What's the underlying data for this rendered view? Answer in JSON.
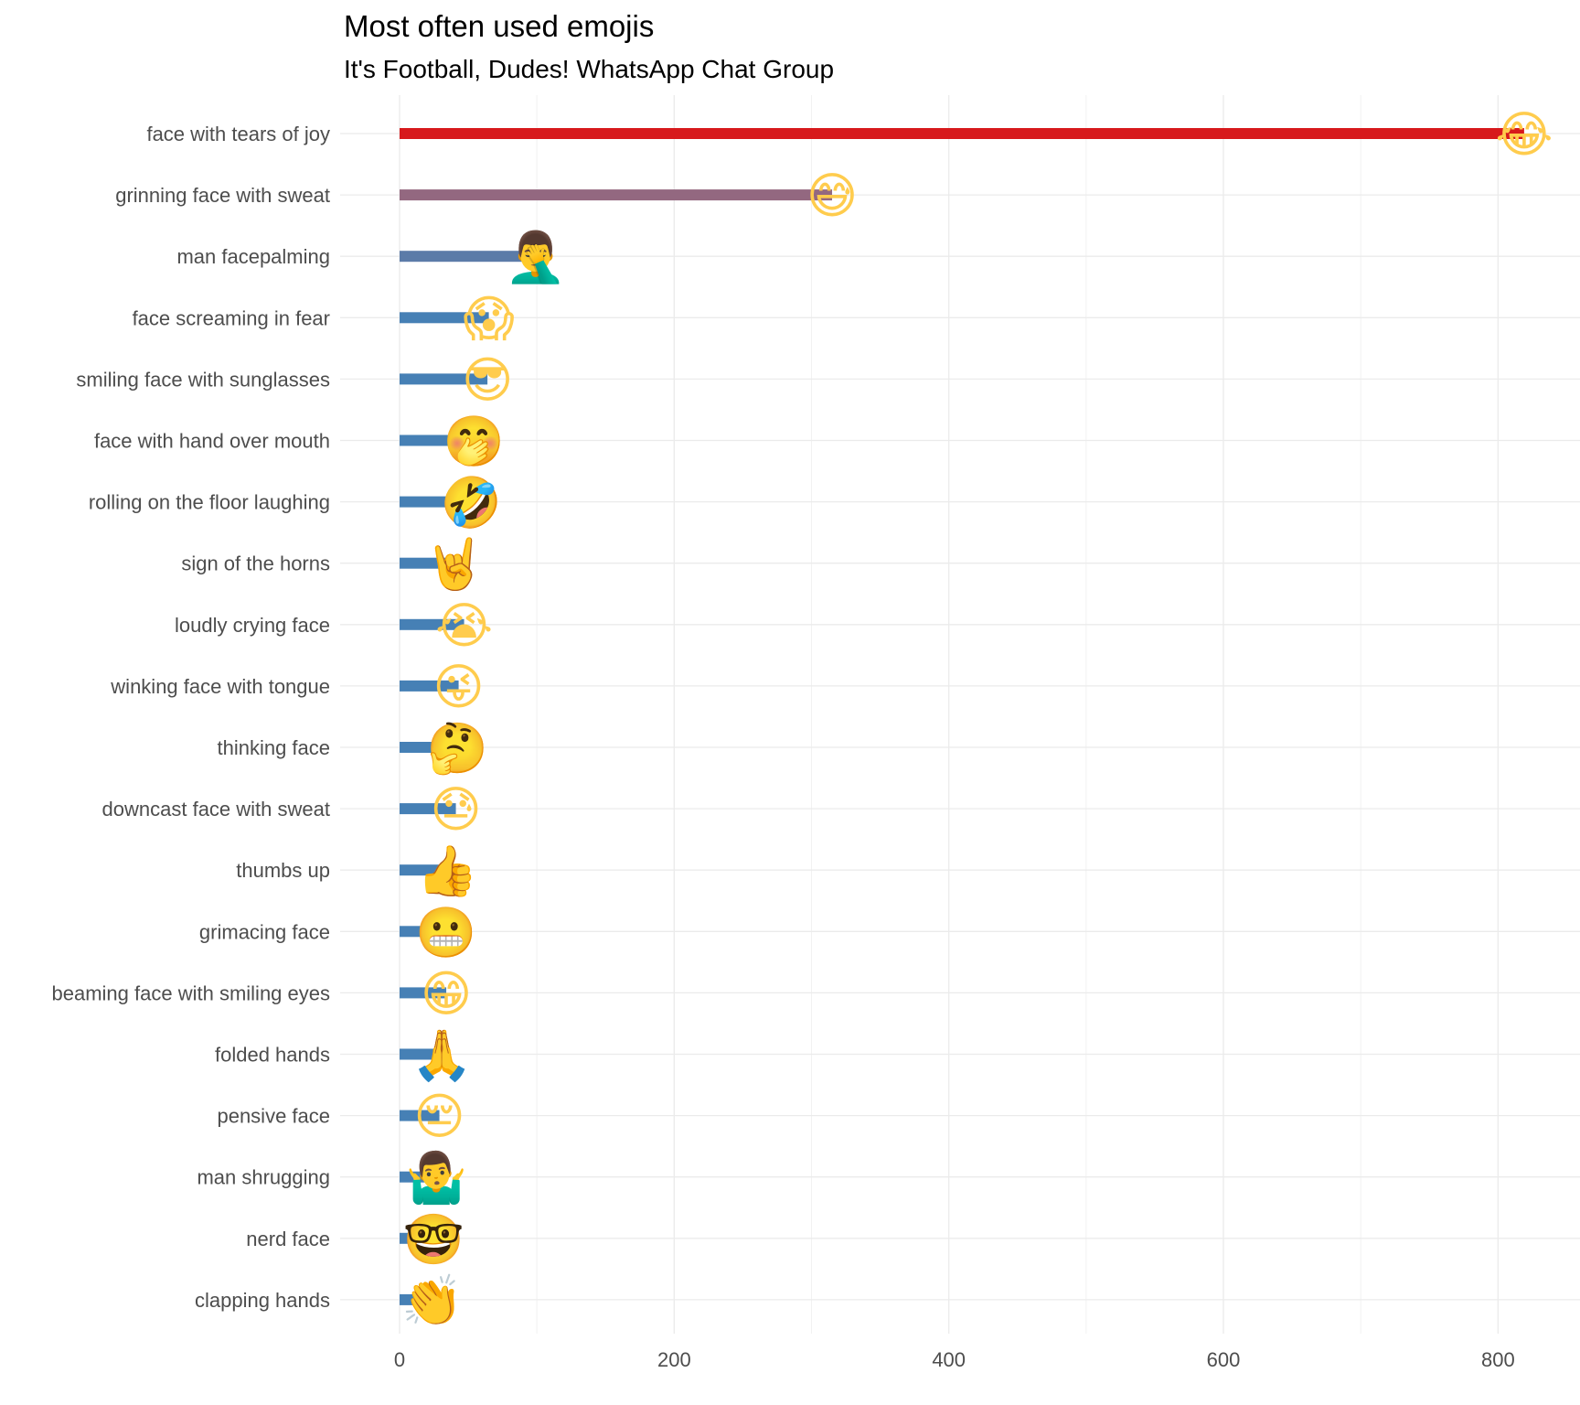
{
  "chart_data": {
    "type": "bar",
    "orientation": "horizontal",
    "title": "Most often used emojis",
    "subtitle": "It's Football, Dudes! WhatsApp Chat Group",
    "xlabel": "",
    "ylabel": "",
    "xlim": [
      0,
      860
    ],
    "x_ticks": [
      0,
      200,
      400,
      600,
      800
    ],
    "grid": true,
    "legend": "none",
    "categories": [
      "face with tears of joy",
      "grinning face with sweat",
      "man facepalming",
      "face screaming in fear",
      "smiling face with sunglasses",
      "face with hand over mouth",
      "rolling on the floor laughing",
      "sign of the horns",
      "loudly crying face",
      "winking face with tongue",
      "thinking face",
      "downcast face with sweat",
      "thumbs up",
      "grimacing face",
      "beaming face with smiling eyes",
      "folded hands",
      "pensive face",
      "man shrugging",
      "nerd face",
      "clapping hands"
    ],
    "values": [
      819,
      315,
      99,
      65,
      64,
      54,
      52,
      40,
      47,
      43,
      42,
      41,
      35,
      34,
      34,
      31,
      29,
      27,
      25,
      24
    ],
    "emojis": [
      "😂",
      "😅",
      "🤦‍♂️",
      "😱",
      "😎",
      "🤭",
      "🤣",
      "🤘",
      "😭",
      "😜",
      "🤔",
      "😓",
      "👍",
      "😬",
      "😁",
      "🙏",
      "😔",
      "🤷‍♂️",
      "🤓",
      "👏"
    ],
    "colors": [
      "#d7191c",
      "#936880",
      "#5b7ba8",
      "#4680b5",
      "#4680b5",
      "#4680b5",
      "#4680b5",
      "#4680b5",
      "#4680b5",
      "#4680b5",
      "#4680b5",
      "#4680b5",
      "#4680b5",
      "#4680b5",
      "#4680b5",
      "#4680b5",
      "#4680b5",
      "#4680b5",
      "#4680b5",
      "#4680b5"
    ],
    "emoji_bg": "#ffcc4d"
  }
}
